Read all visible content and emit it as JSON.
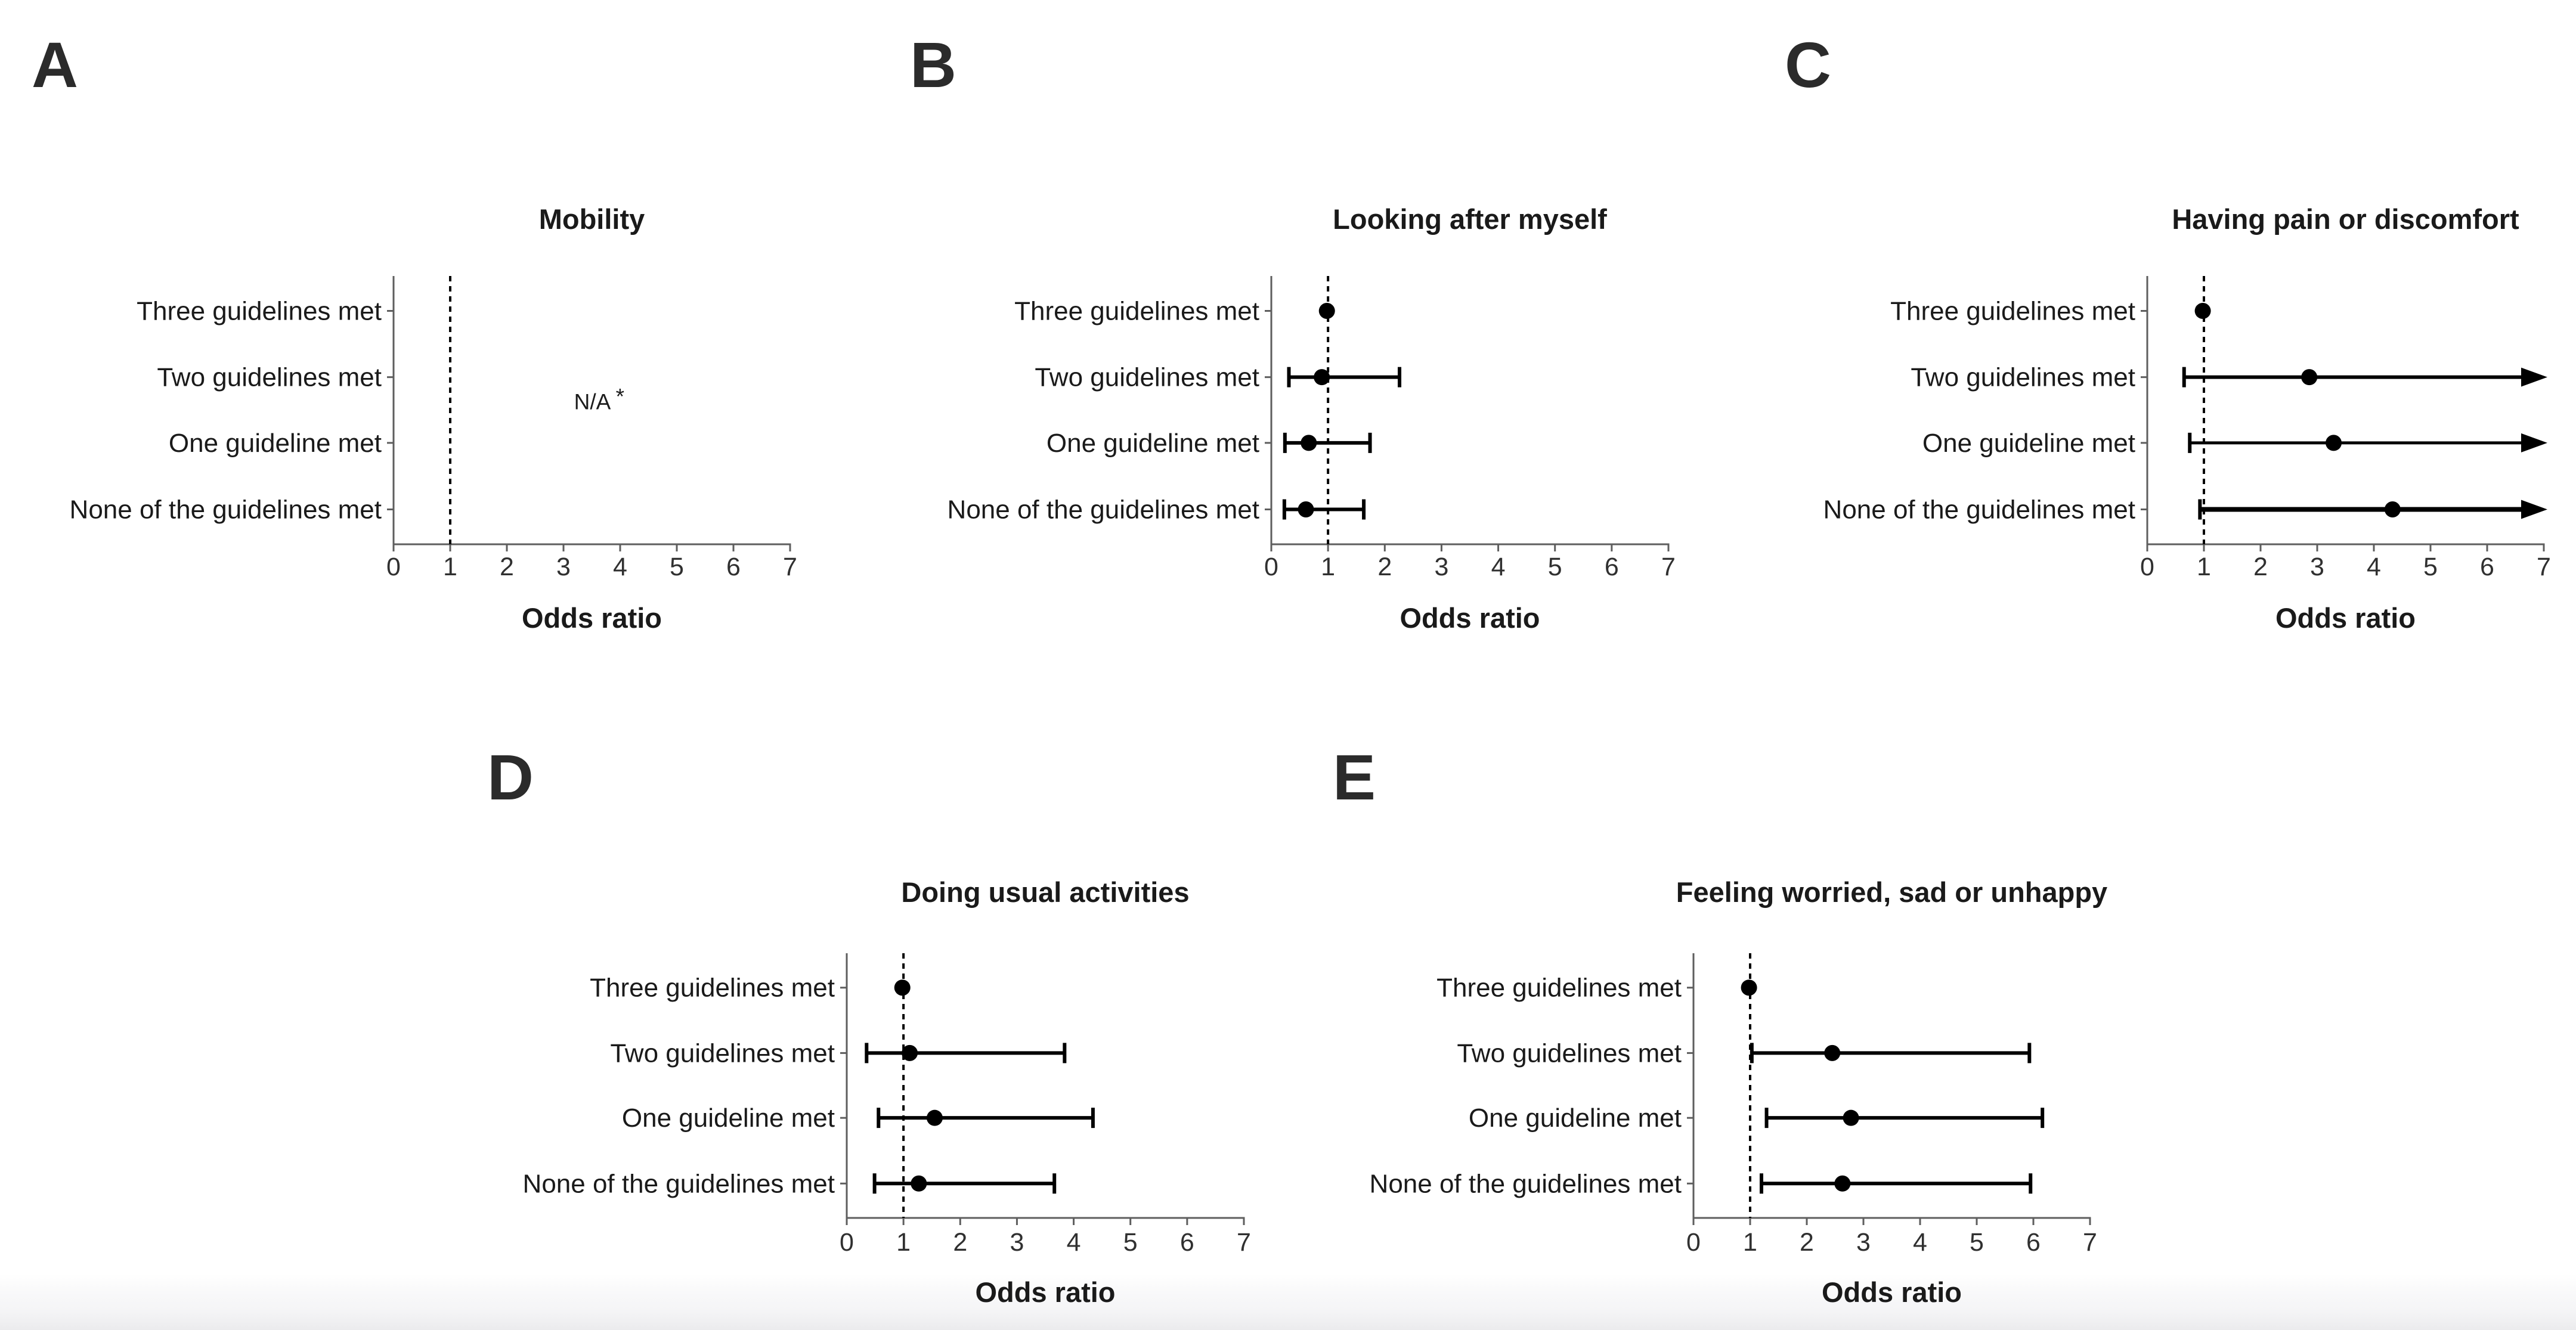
{
  "figure": {
    "kind": "five-panel forest plot figure",
    "background": "#ffffff",
    "bottom_band_color": "#ebebed",
    "axis_color": "#5e5e5e",
    "mark_color": "#000000",
    "text_color": "#1a1a1a",
    "letter_color": "#2b2b2b",
    "xlabel": "Odds ratio"
  },
  "chart_data": [
    {
      "panel_label": "A",
      "title": "Mobility",
      "type": "scatter",
      "xlabel": "Odds ratio",
      "xlim": [
        0,
        7
      ],
      "x_ticks": [
        0,
        1,
        2,
        3,
        4,
        5,
        6,
        7
      ],
      "reference_line_x": 1,
      "grid": "off",
      "categories": [
        "Three guidelines met",
        "Two guidelines met",
        "One guideline met",
        "None of the guidelines met"
      ],
      "points": [],
      "annotation": "N/A *"
    },
    {
      "panel_label": "B",
      "title": "Looking after myself",
      "type": "scatter",
      "xlabel": "Odds ratio",
      "xlim": [
        0,
        7
      ],
      "x_ticks": [
        0,
        1,
        2,
        3,
        4,
        5,
        6,
        7
      ],
      "reference_line_x": 1,
      "grid": "off",
      "categories": [
        "Three guidelines met",
        "Two guidelines met",
        "One guideline met",
        "None of the guidelines met"
      ],
      "points": [
        {
          "category": "Three guidelines met",
          "or": 0.98,
          "ci_low": null,
          "ci_high": null,
          "reference": true
        },
        {
          "category": "Two guidelines met",
          "or": 0.89,
          "ci_low": 0.31,
          "ci_high": 2.26
        },
        {
          "category": "One guideline met",
          "or": 0.66,
          "ci_low": 0.24,
          "ci_high": 1.74
        },
        {
          "category": "None of the guidelines met",
          "or": 0.61,
          "ci_low": 0.23,
          "ci_high": 1.63
        }
      ],
      "annotation": null
    },
    {
      "panel_label": "C",
      "title": "Having pain or discomfort",
      "type": "scatter",
      "xlabel": "Odds ratio",
      "xlim": [
        0,
        7
      ],
      "x_ticks": [
        0,
        1,
        2,
        3,
        4,
        5,
        6,
        7
      ],
      "reference_line_x": 1,
      "grid": "off",
      "categories": [
        "Three guidelines met",
        "Two guidelines met",
        "One guideline met",
        "None of the guidelines met"
      ],
      "points": [
        {
          "category": "Three guidelines met",
          "or": 0.98,
          "ci_low": null,
          "ci_high": null,
          "reference": true
        },
        {
          "category": "Two guidelines met",
          "or": 2.86,
          "ci_low": 0.65,
          "ci_high": 7,
          "arrow_high": true,
          "lw": 6
        },
        {
          "category": "One guideline met",
          "or": 3.29,
          "ci_low": 0.75,
          "ci_high": 7,
          "arrow_high": true,
          "lw": 5
        },
        {
          "category": "None of the guidelines met",
          "or": 4.33,
          "ci_low": 0.93,
          "ci_high": 7,
          "arrow_high": true,
          "lw": 8
        }
      ],
      "annotation": null
    },
    {
      "panel_label": "D",
      "title": "Doing usual activities",
      "type": "scatter",
      "xlabel": "Odds ratio",
      "xlim": [
        0,
        7
      ],
      "x_ticks": [
        0,
        1,
        2,
        3,
        4,
        5,
        6,
        7
      ],
      "reference_line_x": 1,
      "grid": "off",
      "categories": [
        "Three guidelines met",
        "Two guidelines met",
        "One guideline met",
        "None of the guidelines met"
      ],
      "points": [
        {
          "category": "Three guidelines met",
          "or": 0.98,
          "ci_low": null,
          "ci_high": null,
          "reference": true
        },
        {
          "category": "Two guidelines met",
          "or": 1.11,
          "ci_low": 0.35,
          "ci_high": 3.84
        },
        {
          "category": "One guideline met",
          "or": 1.55,
          "ci_low": 0.56,
          "ci_high": 4.34
        },
        {
          "category": "None of the guidelines met",
          "or": 1.27,
          "ci_low": 0.49,
          "ci_high": 3.66
        }
      ],
      "annotation": null
    },
    {
      "panel_label": "E",
      "title": "Feeling worried, sad or unhappy",
      "type": "scatter",
      "xlabel": "Odds ratio",
      "xlim": [
        0,
        7
      ],
      "x_ticks": [
        0,
        1,
        2,
        3,
        4,
        5,
        6,
        7
      ],
      "reference_line_x": 1,
      "grid": "off",
      "categories": [
        "Three guidelines met",
        "Two guidelines met",
        "One guideline met",
        "None of the guidelines met"
      ],
      "points": [
        {
          "category": "Three guidelines met",
          "or": 0.98,
          "ci_low": null,
          "ci_high": null,
          "reference": true
        },
        {
          "category": "Two guidelines met",
          "or": 2.45,
          "ci_low": 1.03,
          "ci_high": 5.93
        },
        {
          "category": "One guideline met",
          "or": 2.78,
          "ci_low": 1.29,
          "ci_high": 6.16
        },
        {
          "category": "None of the guidelines met",
          "or": 2.63,
          "ci_low": 1.2,
          "ci_high": 5.95
        }
      ],
      "annotation": null
    }
  ]
}
